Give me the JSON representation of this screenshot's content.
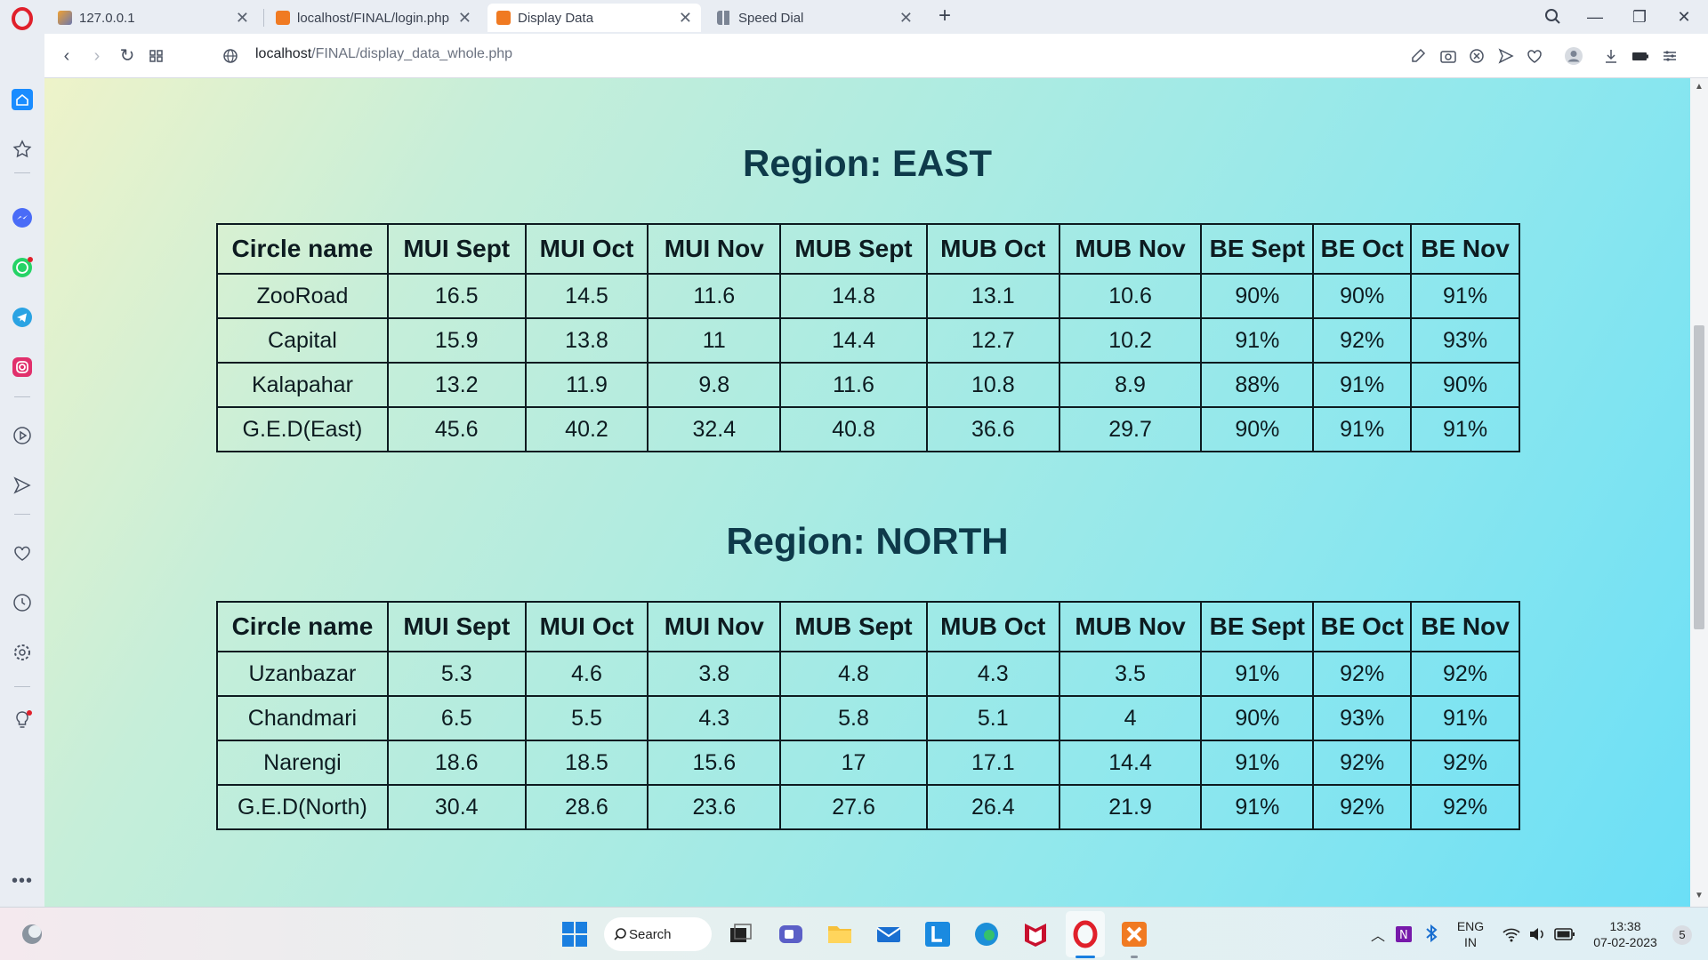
{
  "browser": {
    "tabs": [
      {
        "label": "127.0.0.1",
        "active": false
      },
      {
        "label": "localhost/FINAL/login.php",
        "active": false
      },
      {
        "label": "Display Data",
        "active": true
      },
      {
        "label": "Speed Dial",
        "active": false
      }
    ],
    "url_host": "localhost",
    "url_path": "/FINAL/display_data_whole.php"
  },
  "regions": [
    {
      "title": "Region: EAST",
      "columns": [
        "Circle name",
        "MUI Sept",
        "MUI Oct",
        "MUI Nov",
        "MUB Sept",
        "MUB Oct",
        "MUB Nov",
        "BE Sept",
        "BE Oct",
        "BE Nov"
      ],
      "rows": [
        [
          "ZooRoad",
          "16.5",
          "14.5",
          "11.6",
          "14.8",
          "13.1",
          "10.6",
          "90%",
          "90%",
          "91%"
        ],
        [
          "Capital",
          "15.9",
          "13.8",
          "11",
          "14.4",
          "12.7",
          "10.2",
          "91%",
          "92%",
          "93%"
        ],
        [
          "Kalapahar",
          "13.2",
          "11.9",
          "9.8",
          "11.6",
          "10.8",
          "8.9",
          "88%",
          "91%",
          "90%"
        ],
        [
          "G.E.D(East)",
          "45.6",
          "40.2",
          "32.4",
          "40.8",
          "36.6",
          "29.7",
          "90%",
          "91%",
          "91%"
        ]
      ]
    },
    {
      "title": "Region: NORTH",
      "columns": [
        "Circle name",
        "MUI Sept",
        "MUI Oct",
        "MUI Nov",
        "MUB Sept",
        "MUB Oct",
        "MUB Nov",
        "BE Sept",
        "BE Oct",
        "BE Nov"
      ],
      "rows": [
        [
          "Uzanbazar",
          "5.3",
          "4.6",
          "3.8",
          "4.8",
          "4.3",
          "3.5",
          "91%",
          "92%",
          "92%"
        ],
        [
          "Chandmari",
          "6.5",
          "5.5",
          "4.3",
          "5.8",
          "5.1",
          "4",
          "90%",
          "93%",
          "91%"
        ],
        [
          "Narengi",
          "18.6",
          "18.5",
          "15.6",
          "17",
          "17.1",
          "14.4",
          "91%",
          "92%",
          "92%"
        ],
        [
          "G.E.D(North)",
          "30.4",
          "28.6",
          "23.6",
          "27.6",
          "26.4",
          "21.9",
          "91%",
          "92%",
          "92%"
        ]
      ]
    }
  ],
  "taskbar": {
    "search_label": "Search",
    "lang_line1": "ENG",
    "lang_line2": "IN",
    "time": "13:38",
    "date": "07-02-2023",
    "notification_count": "5"
  },
  "icons": {
    "sidebar": [
      "home-icon",
      "speed-dial-icon",
      "messenger-icon",
      "whatsapp-icon",
      "telegram-icon",
      "instagram-icon",
      "player-icon",
      "send-icon",
      "heart-icon",
      "history-icon",
      "settings-icon",
      "lightbulb-icon",
      "more-icon"
    ],
    "toolbar": [
      "edit-icon",
      "camera-icon",
      "adblock-icon",
      "flow-icon",
      "heart-icon",
      "profile-icon",
      "download-icon",
      "battery-icon",
      "easy-setup-icon"
    ]
  },
  "colors": {
    "title": "#0e3a4a",
    "gradient_start": "#eef3c9",
    "gradient_end": "#6bdff6",
    "opera_red": "#e0202b"
  }
}
